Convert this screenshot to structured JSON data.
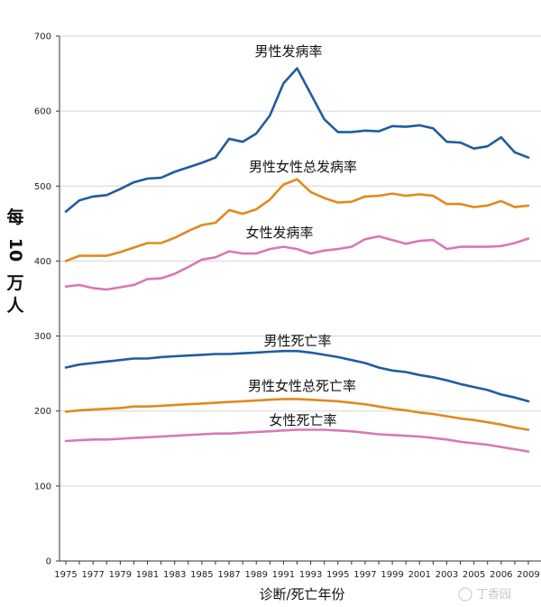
{
  "chart_data": {
    "type": "line",
    "title": "",
    "xlabel": "诊断/死亡年份",
    "ylabel": "每10万人",
    "ylabel_parts": [
      "每",
      "10",
      "万",
      "人"
    ],
    "xlim": [
      1975,
      2009
    ],
    "ylim": [
      0,
      700
    ],
    "yticks": [
      0,
      100,
      200,
      300,
      400,
      500,
      600,
      700
    ],
    "xtick_labels": [
      "1975",
      "1977",
      "1979",
      "1981",
      "1983",
      "1985",
      "1987",
      "1989",
      "1991",
      "1993",
      "1995",
      "1997",
      "1999",
      "2001",
      "2003",
      "2005",
      "2006",
      "2009"
    ],
    "x": [
      1975,
      1976,
      1977,
      1978,
      1979,
      1980,
      1981,
      1982,
      1983,
      1984,
      1985,
      1986,
      1987,
      1988,
      1989,
      1990,
      1991,
      1992,
      1993,
      1994,
      1995,
      1996,
      1997,
      1998,
      1999,
      2000,
      2001,
      2002,
      2003,
      2004,
      2005,
      2006,
      2007,
      2008,
      2009
    ],
    "series": [
      {
        "name": "男性发病率",
        "color": "#1f5d9e",
        "values": [
          466,
          481,
          486,
          488,
          496,
          505,
          510,
          511,
          519,
          525,
          531,
          538,
          563,
          559,
          570,
          594,
          637,
          657,
          623,
          589,
          572,
          572,
          574,
          573,
          580,
          579,
          581,
          577,
          559,
          558,
          550,
          553,
          565,
          545,
          538
        ]
      },
      {
        "name": "男性女性总发病率",
        "color": "#e08a1e",
        "values": [
          400,
          407,
          407,
          407,
          412,
          418,
          424,
          424,
          431,
          440,
          448,
          451,
          468,
          463,
          469,
          482,
          502,
          509,
          492,
          484,
          478,
          479,
          486,
          487,
          490,
          487,
          489,
          487,
          476,
          476,
          472,
          474,
          480,
          472,
          474
        ]
      },
      {
        "name": "女性发病率",
        "color": "#d978b5",
        "values": [
          366,
          368,
          364,
          362,
          365,
          368,
          376,
          377,
          383,
          392,
          402,
          405,
          413,
          410,
          410,
          416,
          419,
          416,
          410,
          414,
          416,
          419,
          429,
          433,
          428,
          423,
          427,
          428,
          416,
          419,
          419,
          419,
          420,
          424,
          430
        ]
      },
      {
        "name": "男性死亡率",
        "color": "#1f5d9e",
        "values": [
          258,
          262,
          264,
          266,
          268,
          270,
          270,
          272,
          273,
          274,
          275,
          276,
          276,
          277,
          278,
          279,
          280,
          280,
          278,
          275,
          272,
          268,
          264,
          258,
          254,
          252,
          248,
          245,
          241,
          236,
          232,
          228,
          222,
          218,
          213
        ]
      },
      {
        "name": "男性女性总死亡率",
        "color": "#e08a1e",
        "values": [
          199,
          201,
          202,
          203,
          204,
          206,
          206,
          207,
          208,
          209,
          210,
          211,
          212,
          213,
          214,
          215,
          216,
          216,
          215,
          214,
          213,
          211,
          209,
          206,
          203,
          201,
          198,
          196,
          193,
          190,
          188,
          185,
          182,
          178,
          175
        ]
      },
      {
        "name": "女性死亡率",
        "color": "#d978b5",
        "values": [
          160,
          161,
          162,
          162,
          163,
          164,
          165,
          166,
          167,
          168,
          169,
          170,
          170,
          171,
          172,
          173,
          174,
          175,
          175,
          175,
          174,
          173,
          171,
          169,
          168,
          167,
          166,
          164,
          162,
          159,
          157,
          155,
          152,
          149,
          146
        ]
      }
    ],
    "annotations": [
      "男性发病率",
      "男性女性总发病率",
      "女性发病率",
      "男性死亡率",
      "男性女性总死亡率",
      "女性死亡率"
    ]
  },
  "watermark": {
    "text": "丁香园"
  }
}
